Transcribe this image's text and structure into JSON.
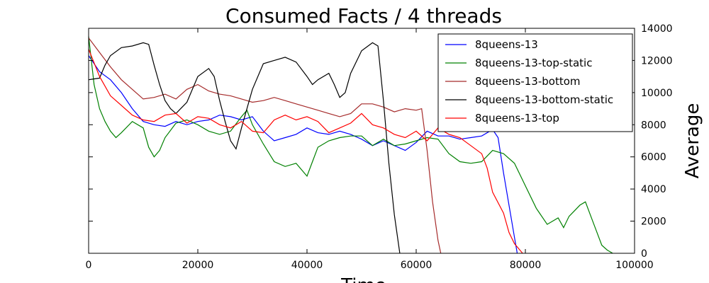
{
  "chart_data": {
    "type": "line",
    "title": "Consumed Facts / 4 threads",
    "xlabel": "Time",
    "ylabel": "Average",
    "xlim": [
      0,
      100000
    ],
    "ylim": [
      0,
      14000
    ],
    "x_ticks": [
      0,
      20000,
      40000,
      60000,
      80000,
      100000
    ],
    "x_tick_labels": [
      "0",
      "20000",
      "40000",
      "60000",
      "80000",
      "100000"
    ],
    "y_ticks": [
      0,
      2000,
      4000,
      6000,
      8000,
      10000,
      12000,
      14000
    ],
    "y_tick_labels": [
      "0",
      "2000",
      "4000",
      "6000",
      "8000",
      "10000",
      "12000",
      "14000"
    ],
    "y_axis_side": "right",
    "grid": false,
    "legend_position": "top-right",
    "series": [
      {
        "name": "8queens-13",
        "color": "#0000ff",
        "points": [
          [
            0,
            12300
          ],
          [
            2000,
            11300
          ],
          [
            4000,
            10800
          ],
          [
            6000,
            10000
          ],
          [
            8000,
            9000
          ],
          [
            10000,
            8200
          ],
          [
            12000,
            8000
          ],
          [
            14000,
            7900
          ],
          [
            16000,
            8200
          ],
          [
            18000,
            8000
          ],
          [
            20000,
            8200
          ],
          [
            22000,
            8300
          ],
          [
            24000,
            8600
          ],
          [
            26000,
            8500
          ],
          [
            28000,
            8300
          ],
          [
            30000,
            8500
          ],
          [
            32000,
            7600
          ],
          [
            34000,
            7000
          ],
          [
            36000,
            7200
          ],
          [
            38000,
            7400
          ],
          [
            40000,
            7800
          ],
          [
            42000,
            7500
          ],
          [
            44000,
            7400
          ],
          [
            46000,
            7600
          ],
          [
            48000,
            7400
          ],
          [
            50000,
            7100
          ],
          [
            52000,
            6700
          ],
          [
            54000,
            7000
          ],
          [
            56000,
            6700
          ],
          [
            58000,
            6400
          ],
          [
            60000,
            6900
          ],
          [
            62000,
            7600
          ],
          [
            64000,
            7300
          ],
          [
            66000,
            7300
          ],
          [
            68000,
            7100
          ],
          [
            70000,
            7200
          ],
          [
            72000,
            7300
          ],
          [
            74000,
            7700
          ],
          [
            75000,
            7200
          ],
          [
            76000,
            5000
          ],
          [
            77000,
            3000
          ],
          [
            78000,
            1000
          ],
          [
            78500,
            0
          ]
        ]
      },
      {
        "name": "8queens-13-top-static",
        "color": "#008000",
        "points": [
          [
            0,
            13500
          ],
          [
            1000,
            10500
          ],
          [
            2000,
            9000
          ],
          [
            3000,
            8200
          ],
          [
            4000,
            7600
          ],
          [
            5000,
            7200
          ],
          [
            6000,
            7500
          ],
          [
            8000,
            8200
          ],
          [
            10000,
            7800
          ],
          [
            11000,
            6600
          ],
          [
            12000,
            6000
          ],
          [
            13000,
            6400
          ],
          [
            14000,
            7200
          ],
          [
            16000,
            8100
          ],
          [
            18000,
            8300
          ],
          [
            20000,
            8000
          ],
          [
            22000,
            7600
          ],
          [
            24000,
            7400
          ],
          [
            26000,
            7600
          ],
          [
            28000,
            8500
          ],
          [
            29000,
            8900
          ],
          [
            30000,
            8000
          ],
          [
            32000,
            6800
          ],
          [
            34000,
            5700
          ],
          [
            36000,
            5400
          ],
          [
            38000,
            5600
          ],
          [
            39000,
            5200
          ],
          [
            40000,
            4800
          ],
          [
            41000,
            5700
          ],
          [
            42000,
            6600
          ],
          [
            44000,
            7000
          ],
          [
            46000,
            7200
          ],
          [
            48000,
            7300
          ],
          [
            50000,
            7300
          ],
          [
            52000,
            6700
          ],
          [
            54000,
            7100
          ],
          [
            56000,
            6700
          ],
          [
            58000,
            6800
          ],
          [
            60000,
            7000
          ],
          [
            62000,
            7200
          ],
          [
            64000,
            7100
          ],
          [
            66000,
            6200
          ],
          [
            68000,
            5700
          ],
          [
            70000,
            5600
          ],
          [
            72000,
            5700
          ],
          [
            74000,
            6400
          ],
          [
            76000,
            6200
          ],
          [
            78000,
            5600
          ],
          [
            80000,
            4200
          ],
          [
            82000,
            2800
          ],
          [
            84000,
            1800
          ],
          [
            86000,
            2200
          ],
          [
            87000,
            1600
          ],
          [
            88000,
            2300
          ],
          [
            90000,
            3000
          ],
          [
            91000,
            3200
          ],
          [
            92000,
            2300
          ],
          [
            93000,
            1400
          ],
          [
            94000,
            500
          ],
          [
            95000,
            200
          ],
          [
            96000,
            0
          ]
        ]
      },
      {
        "name": "8queens-13-bottom",
        "color": "#a52a2a",
        "points": [
          [
            0,
            13400
          ],
          [
            2000,
            12500
          ],
          [
            4000,
            11600
          ],
          [
            6000,
            10800
          ],
          [
            8000,
            10200
          ],
          [
            10000,
            9600
          ],
          [
            12000,
            9700
          ],
          [
            14000,
            9900
          ],
          [
            16000,
            9600
          ],
          [
            18000,
            10200
          ],
          [
            20000,
            10500
          ],
          [
            22000,
            10100
          ],
          [
            24000,
            9900
          ],
          [
            26000,
            9800
          ],
          [
            28000,
            9600
          ],
          [
            30000,
            9400
          ],
          [
            32000,
            9500
          ],
          [
            34000,
            9700
          ],
          [
            36000,
            9500
          ],
          [
            38000,
            9300
          ],
          [
            40000,
            9100
          ],
          [
            42000,
            8900
          ],
          [
            44000,
            8700
          ],
          [
            46000,
            8500
          ],
          [
            48000,
            8700
          ],
          [
            50000,
            9300
          ],
          [
            52000,
            9300
          ],
          [
            54000,
            9100
          ],
          [
            56000,
            8800
          ],
          [
            58000,
            9000
          ],
          [
            60000,
            8900
          ],
          [
            61000,
            9000
          ],
          [
            62000,
            6400
          ],
          [
            63000,
            3200
          ],
          [
            64000,
            800
          ],
          [
            64500,
            0
          ]
        ]
      },
      {
        "name": "8queens-13-bottom-static",
        "color": "#000000",
        "points": [
          [
            0,
            10800
          ],
          [
            2000,
            10900
          ],
          [
            3000,
            11700
          ],
          [
            4000,
            12300
          ],
          [
            6000,
            12800
          ],
          [
            8000,
            12900
          ],
          [
            10000,
            13100
          ],
          [
            11000,
            13000
          ],
          [
            12000,
            11700
          ],
          [
            13000,
            10500
          ],
          [
            14000,
            9500
          ],
          [
            15000,
            9000
          ],
          [
            16000,
            8700
          ],
          [
            18000,
            9400
          ],
          [
            20000,
            11000
          ],
          [
            22000,
            11500
          ],
          [
            23000,
            11000
          ],
          [
            24000,
            9500
          ],
          [
            25000,
            8200
          ],
          [
            26000,
            7000
          ],
          [
            27000,
            6500
          ],
          [
            28000,
            7800
          ],
          [
            29000,
            9000
          ],
          [
            30000,
            10200
          ],
          [
            32000,
            11800
          ],
          [
            34000,
            12000
          ],
          [
            36000,
            12200
          ],
          [
            38000,
            11900
          ],
          [
            40000,
            11000
          ],
          [
            41000,
            10500
          ],
          [
            42000,
            10800
          ],
          [
            44000,
            11200
          ],
          [
            45000,
            10500
          ],
          [
            46000,
            9700
          ],
          [
            47000,
            10000
          ],
          [
            48000,
            11200
          ],
          [
            50000,
            12600
          ],
          [
            52000,
            13100
          ],
          [
            53000,
            12900
          ],
          [
            54000,
            9500
          ],
          [
            55000,
            5600
          ],
          [
            56000,
            2400
          ],
          [
            57000,
            0
          ]
        ]
      },
      {
        "name": "8queens-13-top",
        "color": "#ff0000",
        "points": [
          [
            0,
            12700
          ],
          [
            2000,
            11000
          ],
          [
            4000,
            9800
          ],
          [
            6000,
            9200
          ],
          [
            8000,
            8600
          ],
          [
            10000,
            8300
          ],
          [
            12000,
            8200
          ],
          [
            14000,
            8600
          ],
          [
            16000,
            8700
          ],
          [
            18000,
            8100
          ],
          [
            20000,
            8500
          ],
          [
            22000,
            8400
          ],
          [
            24000,
            8000
          ],
          [
            26000,
            7800
          ],
          [
            28000,
            8200
          ],
          [
            30000,
            7600
          ],
          [
            32000,
            7500
          ],
          [
            34000,
            8300
          ],
          [
            36000,
            8600
          ],
          [
            38000,
            8300
          ],
          [
            40000,
            8500
          ],
          [
            42000,
            8200
          ],
          [
            44000,
            7500
          ],
          [
            46000,
            7800
          ],
          [
            48000,
            8100
          ],
          [
            50000,
            8700
          ],
          [
            52000,
            8000
          ],
          [
            54000,
            7800
          ],
          [
            56000,
            7400
          ],
          [
            58000,
            7200
          ],
          [
            60000,
            7600
          ],
          [
            62000,
            7000
          ],
          [
            64000,
            7800
          ],
          [
            66000,
            7400
          ],
          [
            68000,
            7200
          ],
          [
            70000,
            6700
          ],
          [
            72000,
            6200
          ],
          [
            73000,
            5300
          ],
          [
            74000,
            3800
          ],
          [
            76000,
            2500
          ],
          [
            77000,
            1300
          ],
          [
            78000,
            600
          ],
          [
            79000,
            200
          ],
          [
            79500,
            0
          ]
        ]
      }
    ]
  }
}
